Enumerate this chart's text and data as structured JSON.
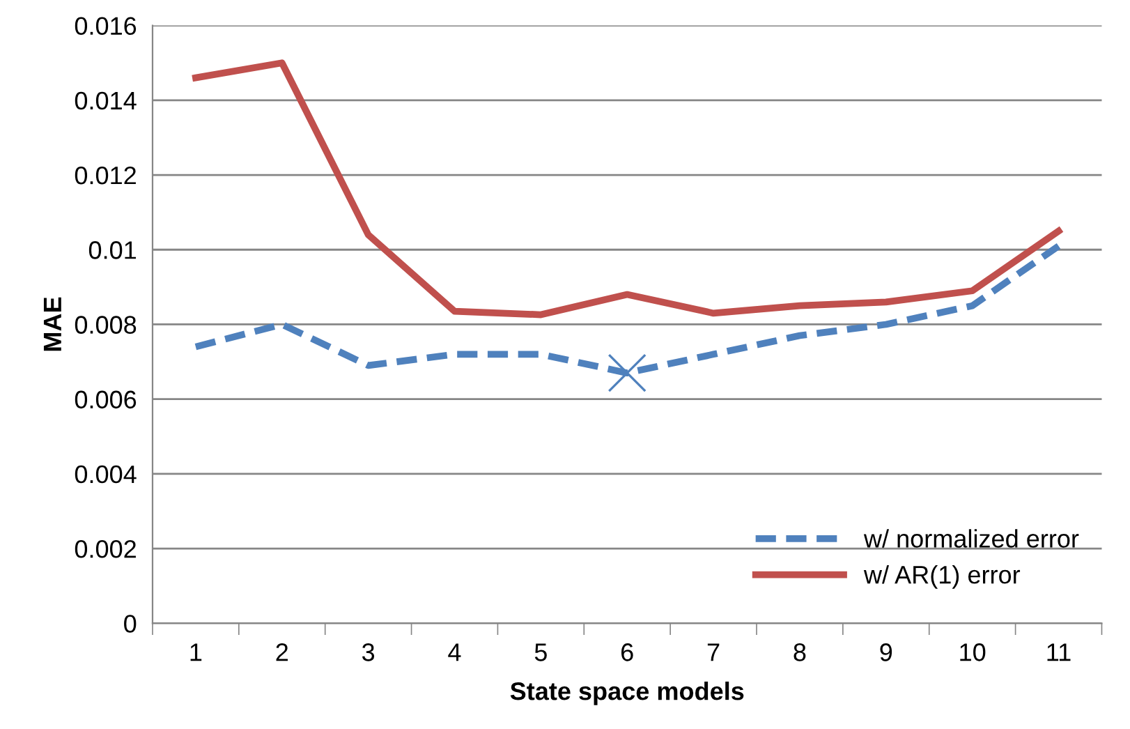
{
  "chart_data": {
    "type": "line",
    "xlabel": "State space models",
    "ylabel": "MAE",
    "categories": [
      "1",
      "2",
      "3",
      "4",
      "5",
      "6",
      "7",
      "8",
      "9",
      "10",
      "11"
    ],
    "series": [
      {
        "name": "w/ normalized error",
        "color": "#4f81bd",
        "line_style": "dashed",
        "values": [
          0.0074,
          0.008,
          0.0069,
          0.0072,
          0.0072,
          0.0067,
          0.0072,
          0.0077,
          0.008,
          0.0085,
          0.0101
        ]
      },
      {
        "name": "w/ AR(1) error",
        "color": "#c0504d",
        "line_style": "solid",
        "values": [
          0.0146,
          0.015,
          0.0104,
          0.00835,
          0.00826,
          0.0088,
          0.0083,
          0.0085,
          0.0086,
          0.0089,
          0.0105
        ]
      },
      {
        "type": "scatter",
        "marker": "cross",
        "color": "#4f81bd",
        "x": [
          "6"
        ],
        "values": [
          0.0067
        ]
      }
    ],
    "ylim": [
      0,
      0.016
    ],
    "yticks": [
      0,
      0.002,
      0.004,
      0.006,
      0.008,
      0.01,
      0.012,
      0.014,
      0.016
    ],
    "grid": "y",
    "legend": "bottom right"
  }
}
